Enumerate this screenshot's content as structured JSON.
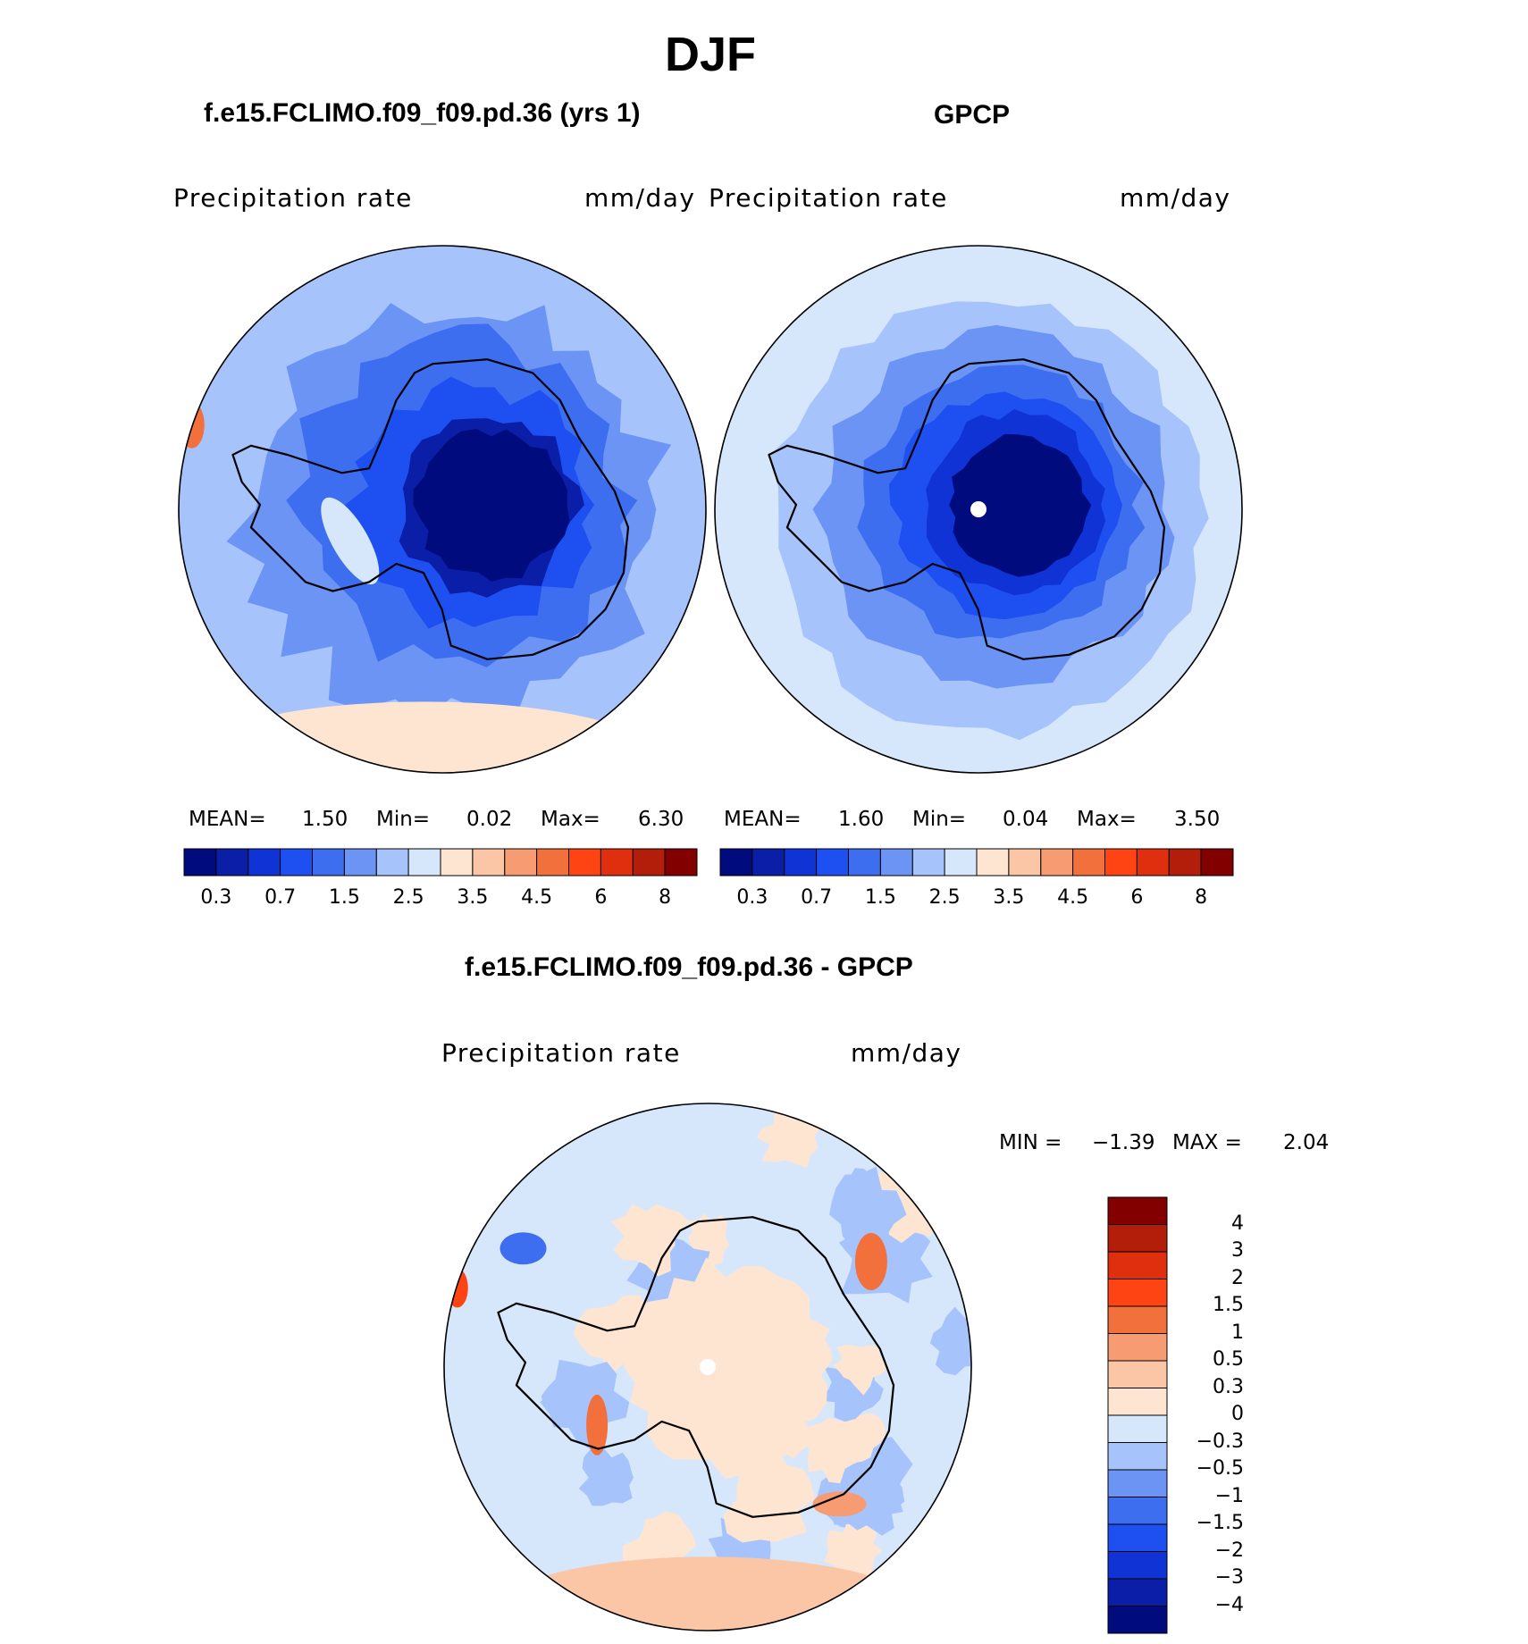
{
  "page_title": "DJF",
  "colors": {
    "abs_scale": [
      "#000c7d",
      "#0a1ea8",
      "#1033d6",
      "#1e4ff0",
      "#3d6ef0",
      "#6c94f5",
      "#a6c4fb",
      "#d6e7fc",
      "#fde5d2",
      "#fbc6a6",
      "#f79b72",
      "#f2703c",
      "#ff4414",
      "#e02f0e",
      "#b31e0a",
      "#820000"
    ],
    "diff_scale": [
      "#000c7d",
      "#0a1ea8",
      "#1033d6",
      "#1e4ff0",
      "#3d6ef0",
      "#6c94f5",
      "#a6c4fb",
      "#d6e7fc",
      "#fde5d2",
      "#fbc6a6",
      "#f79b72",
      "#f2703c",
      "#ff4414",
      "#e02f0e",
      "#b31e0a",
      "#820000"
    ],
    "land_outline": "#000000"
  },
  "chart_data": [
    {
      "type": "heatmap",
      "projection": "south-polar-stereographic",
      "title": "f.e15.FCLIMO.f09_f09.pd.36 (yrs 1)",
      "variable_label": "Precipitation  rate",
      "units": "mm/day",
      "stats": {
        "mean_label": "MEAN=",
        "mean": "1.50",
        "min_label": "Min=",
        "min": "0.02",
        "max_label": "Max=",
        "max": "6.30"
      },
      "colorbar_ticks": [
        "0.3",
        "0.7",
        "1.5",
        "2.5",
        "3.5",
        "4.5",
        "6",
        "8"
      ]
    },
    {
      "type": "heatmap",
      "projection": "south-polar-stereographic",
      "title": "GPCP",
      "variable_label": "Precipitation  rate",
      "units": "mm/day",
      "stats": {
        "mean_label": "MEAN=",
        "mean": "1.60",
        "min_label": "Min=",
        "min": "0.04",
        "max_label": "Max=",
        "max": "3.50"
      },
      "colorbar_ticks": [
        "0.3",
        "0.7",
        "1.5",
        "2.5",
        "3.5",
        "4.5",
        "6",
        "8"
      ]
    },
    {
      "type": "heatmap",
      "projection": "south-polar-stereographic",
      "title": "f.e15.FCLIMO.f09_f09.pd.36 - GPCP",
      "variable_label": "Precipitation  rate",
      "units": "mm/day",
      "stats_text": {
        "min_label": "MIN =",
        "min": "−1.39",
        "max_label": "MAX =",
        "max": "2.04"
      },
      "colorbar_ticks": [
        "4",
        "3",
        "2",
        "1.5",
        "1",
        "0.5",
        "0.3",
        "0",
        "−0.3",
        "−0.5",
        "−1",
        "−1.5",
        "−2",
        "−3",
        "−4"
      ]
    }
  ]
}
